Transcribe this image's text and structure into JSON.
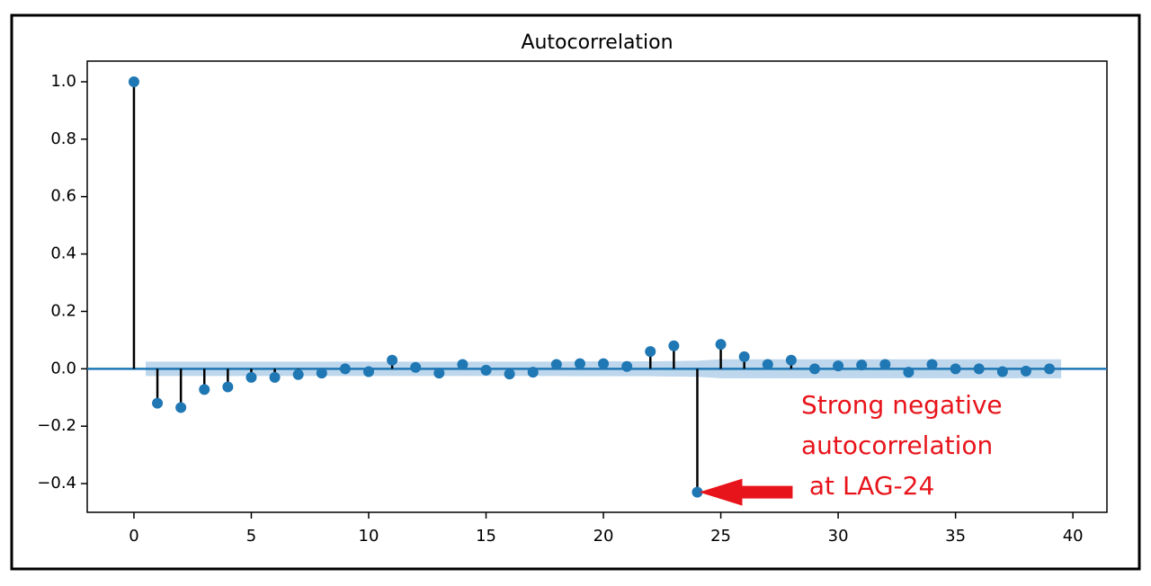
{
  "chart_data": {
    "type": "stem",
    "title": "Autocorrelation",
    "x": [
      0,
      1,
      2,
      3,
      4,
      5,
      6,
      7,
      8,
      9,
      10,
      11,
      12,
      13,
      14,
      15,
      16,
      17,
      18,
      19,
      20,
      21,
      22,
      23,
      24,
      25,
      26,
      27,
      28,
      29,
      30,
      31,
      32,
      33,
      34,
      35,
      36,
      37,
      38,
      39
    ],
    "values": [
      1.0,
      -0.12,
      -0.135,
      -0.072,
      -0.063,
      -0.03,
      -0.03,
      -0.02,
      -0.015,
      0.0,
      -0.01,
      0.03,
      0.005,
      -0.015,
      0.015,
      -0.005,
      -0.018,
      -0.012,
      0.015,
      0.018,
      0.018,
      0.008,
      0.06,
      0.08,
      -0.43,
      0.085,
      0.042,
      0.015,
      0.03,
      0.0,
      0.01,
      0.013,
      0.015,
      -0.012,
      0.015,
      0.0,
      0.0,
      -0.01,
      -0.008,
      0.0
    ],
    "confint": [
      null,
      0.025,
      0.025,
      0.025,
      0.025,
      0.025,
      0.025,
      0.025,
      0.025,
      0.025,
      0.025,
      0.025,
      0.025,
      0.025,
      0.025,
      0.025,
      0.025,
      0.025,
      0.025,
      0.026,
      0.026,
      0.026,
      0.026,
      0.027,
      0.028,
      0.033,
      0.033,
      0.033,
      0.033,
      0.033,
      0.033,
      0.033,
      0.033,
      0.033,
      0.033,
      0.033,
      0.033,
      0.033,
      0.033,
      0.033
    ],
    "color": "#1f77b4",
    "band_color": "#aecde8",
    "xlim": [
      -1.99,
      41.45
    ],
    "ylim": [
      -0.5,
      1.072
    ],
    "xticks": [
      0,
      5,
      10,
      15,
      20,
      25,
      30,
      35,
      40
    ],
    "yticks": [
      {
        "value": -0.4,
        "label": "−0.4"
      },
      {
        "value": -0.2,
        "label": "−0.2"
      },
      {
        "value": 0,
        "label": "0.0"
      },
      0.2,
      0.4,
      0.6,
      0.8,
      {
        "value": 1.0,
        "label": "1.0"
      }
    ],
    "annotation": {
      "lines": [
        "Strong negative",
        "autocorrelation",
        " at LAG-24"
      ],
      "target_index": 24,
      "color": "#e8141b"
    }
  }
}
